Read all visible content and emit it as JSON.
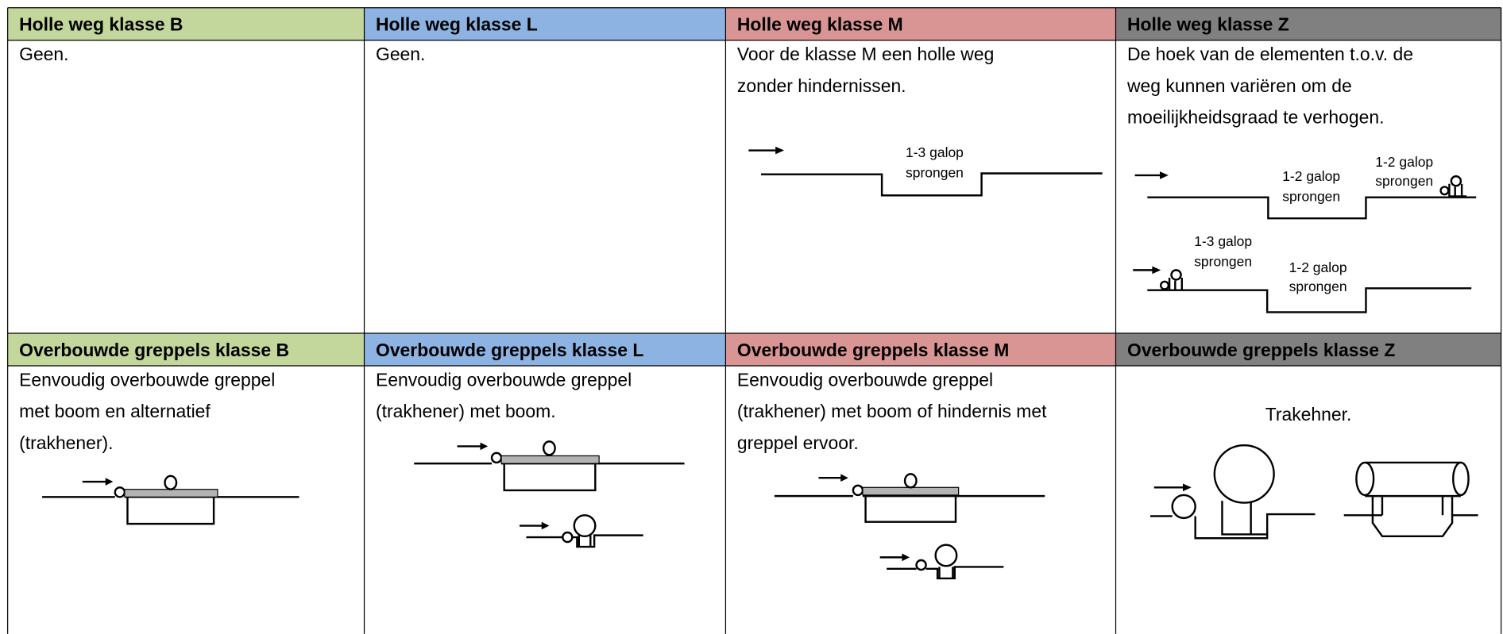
{
  "table": {
    "rows": [
      {
        "headers": [
          "Holle weg klasse B",
          "Holle weg klasse L",
          "Holle weg klasse M",
          "Holle weg klasse Z"
        ],
        "cells": [
          {
            "lines": [
              "Geen."
            ]
          },
          {
            "lines": [
              "Geen."
            ]
          },
          {
            "lines": [
              "Voor de klasse M een holle weg",
              "zonder hindernissen."
            ],
            "labels": [
              "1-3 galop",
              "sprongen"
            ]
          },
          {
            "lines": [
              "De hoek van de elementen t.o.v. de",
              "weg kunnen variëren om de",
              "moeilijkheidsgraad te verhogen."
            ],
            "labels": [
              "1-2 galop",
              "sprongen",
              "1-2 galop",
              "sprongen",
              "1-3 galop",
              "sprongen",
              "1-2 galop",
              "sprongen"
            ]
          }
        ]
      },
      {
        "headers": [
          "Overbouwde greppels klasse B",
          "Overbouwde greppels klasse L",
          "Overbouwde greppels klasse M",
          "Overbouwde greppels klasse Z"
        ],
        "cells": [
          {
            "lines": [
              "Eenvoudig overbouwde greppel",
              "met boom en alternatief",
              "(trakhener)."
            ]
          },
          {
            "lines": [
              "Eenvoudig overbouwde greppel",
              "(trakhener)  met boom."
            ]
          },
          {
            "lines": [
              "Eenvoudig overbouwde greppel",
              "(trakhener) met boom of hindernis met",
              "greppel ervoor."
            ]
          },
          {
            "lines": [
              "Trakehner."
            ]
          }
        ]
      }
    ]
  }
}
